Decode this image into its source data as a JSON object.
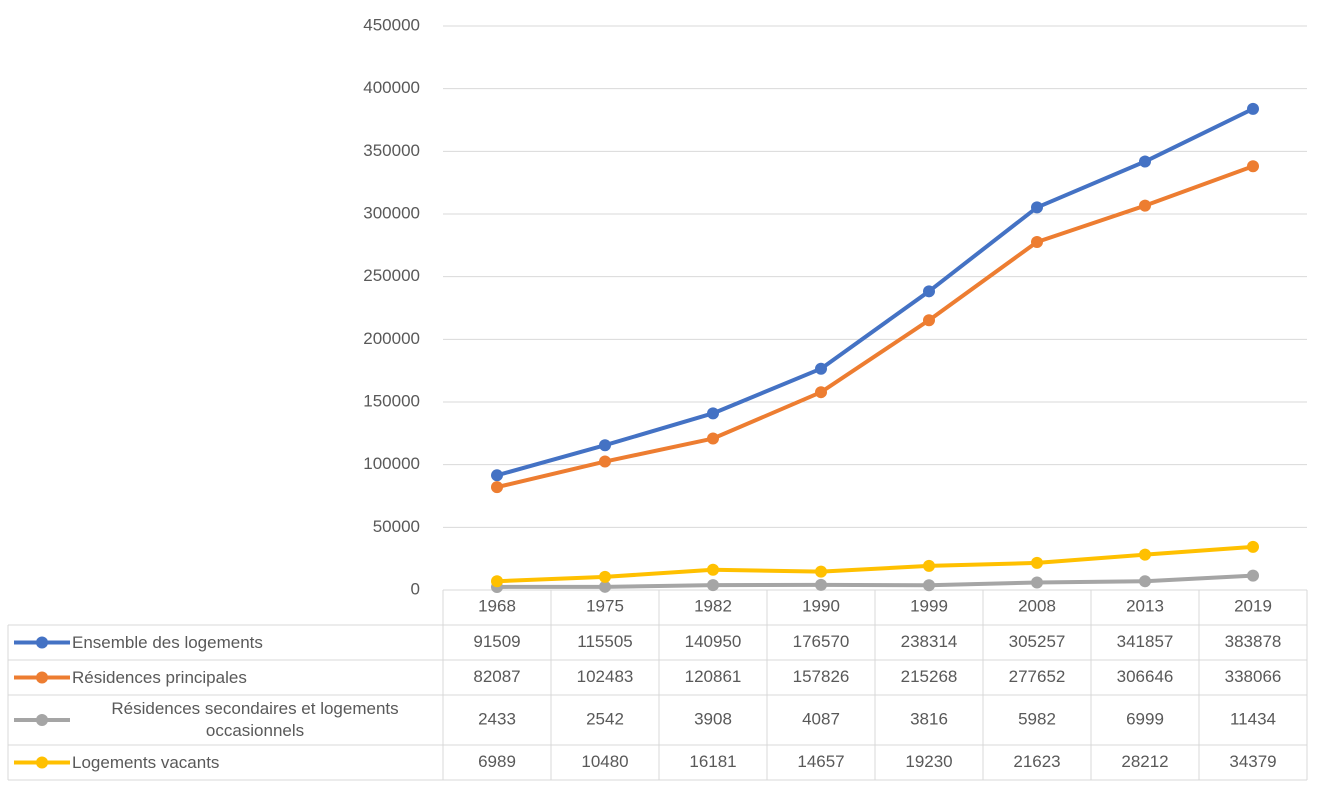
{
  "chart_data": {
    "type": "line",
    "categories": [
      "1968",
      "1975",
      "1982",
      "1990",
      "1999",
      "2008",
      "2013",
      "2019"
    ],
    "series": [
      {
        "name": "Ensemble des logements",
        "color": "#4472c4",
        "values": [
          91509,
          115505,
          140950,
          176570,
          238314,
          305257,
          341857,
          383878
        ]
      },
      {
        "name": "Résidences principales",
        "color": "#ed7d31",
        "values": [
          82087,
          102483,
          120861,
          157826,
          215268,
          277652,
          306646,
          338066
        ]
      },
      {
        "name": "Résidences secondaires et logements occasionnels",
        "color": "#a5a5a5",
        "values": [
          2433,
          2542,
          3908,
          4087,
          3816,
          5982,
          6999,
          11434
        ]
      },
      {
        "name": "Logements vacants",
        "color": "#ffc000",
        "values": [
          6989,
          10480,
          16181,
          14657,
          19230,
          21623,
          28212,
          34379
        ]
      }
    ],
    "ylim": [
      0,
      450000
    ],
    "yticks": [
      0,
      50000,
      100000,
      150000,
      200000,
      250000,
      300000,
      350000,
      400000,
      450000
    ],
    "grid": true
  }
}
